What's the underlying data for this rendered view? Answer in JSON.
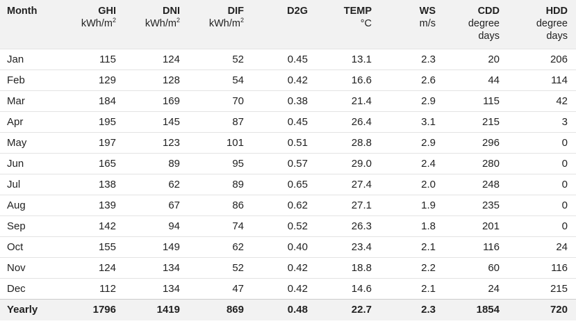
{
  "headers": [
    {
      "name": "Month",
      "unit": ""
    },
    {
      "name": "GHI",
      "unit": "kWh/m",
      "sup": "2"
    },
    {
      "name": "DNI",
      "unit": "kWh/m",
      "sup": "2"
    },
    {
      "name": "DIF",
      "unit": "kWh/m",
      "sup": "2"
    },
    {
      "name": "D2G",
      "unit": ""
    },
    {
      "name": "TEMP",
      "unit": "°C"
    },
    {
      "name": "WS",
      "unit": "m/s"
    },
    {
      "name": "CDD",
      "unit": "degree",
      "unit2": "days"
    },
    {
      "name": "HDD",
      "unit": "degree",
      "unit2": "days"
    }
  ],
  "rows": [
    [
      "Jan",
      "115",
      "124",
      "52",
      "0.45",
      "13.1",
      "2.3",
      "20",
      "206"
    ],
    [
      "Feb",
      "129",
      "128",
      "54",
      "0.42",
      "16.6",
      "2.6",
      "44",
      "114"
    ],
    [
      "Mar",
      "184",
      "169",
      "70",
      "0.38",
      "21.4",
      "2.9",
      "115",
      "42"
    ],
    [
      "Apr",
      "195",
      "145",
      "87",
      "0.45",
      "26.4",
      "3.1",
      "215",
      "3"
    ],
    [
      "May",
      "197",
      "123",
      "101",
      "0.51",
      "28.8",
      "2.9",
      "296",
      "0"
    ],
    [
      "Jun",
      "165",
      "89",
      "95",
      "0.57",
      "29.0",
      "2.4",
      "280",
      "0"
    ],
    [
      "Jul",
      "138",
      "62",
      "89",
      "0.65",
      "27.4",
      "2.0",
      "248",
      "0"
    ],
    [
      "Aug",
      "139",
      "67",
      "86",
      "0.62",
      "27.1",
      "1.9",
      "235",
      "0"
    ],
    [
      "Sep",
      "142",
      "94",
      "74",
      "0.52",
      "26.3",
      "1.8",
      "201",
      "0"
    ],
    [
      "Oct",
      "155",
      "149",
      "62",
      "0.40",
      "23.4",
      "2.1",
      "116",
      "24"
    ],
    [
      "Nov",
      "124",
      "134",
      "52",
      "0.42",
      "18.8",
      "2.2",
      "60",
      "116"
    ],
    [
      "Dec",
      "112",
      "134",
      "47",
      "0.42",
      "14.6",
      "2.1",
      "24",
      "215"
    ]
  ],
  "yearly": [
    "Yearly",
    "1796",
    "1419",
    "869",
    "0.48",
    "22.7",
    "2.3",
    "1854",
    "720"
  ],
  "colors": {
    "header_bg": "#f2f2f2",
    "row_border": "#e3e3e3",
    "text": "#222222"
  }
}
